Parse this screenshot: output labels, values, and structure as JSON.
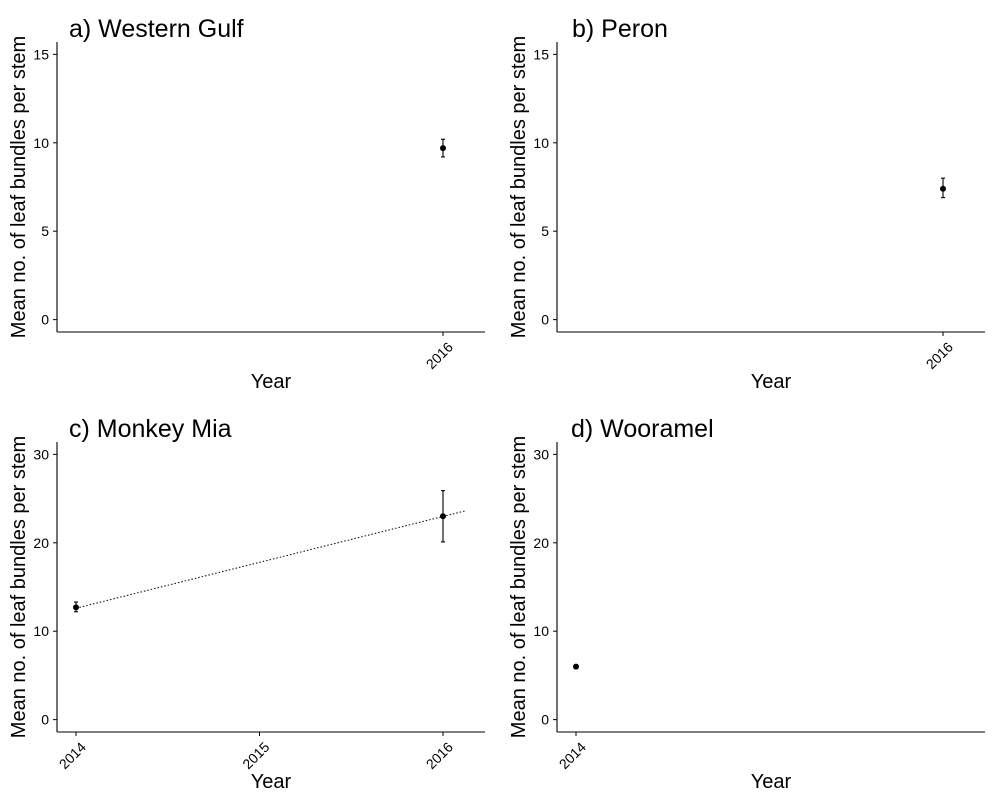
{
  "chart_data": [
    {
      "type": "scatter",
      "title": "a) Western Gulf",
      "xlabel": "Year",
      "ylabel": "Mean no. of leaf bundles per stem",
      "yticks": [
        0,
        5,
        10,
        15
      ],
      "ylim": [
        -0.7,
        15.7
      ],
      "xticks": [
        "2016"
      ],
      "points": [
        {
          "x": "2016",
          "y": 9.7,
          "ymin": 9.2,
          "ymax": 10.2
        }
      ],
      "trend": null
    },
    {
      "type": "scatter",
      "title": "b) Peron",
      "xlabel": "Year",
      "ylabel": "Mean no. of leaf bundles per stem",
      "yticks": [
        0,
        5,
        10,
        15
      ],
      "ylim": [
        -0.7,
        15.7
      ],
      "xticks": [
        "2016"
      ],
      "points": [
        {
          "x": "2016",
          "y": 7.4,
          "ymin": 6.9,
          "ymax": 8.0
        }
      ],
      "trend": null
    },
    {
      "type": "scatter",
      "title": "c) Monkey Mia",
      "xlabel": "Year",
      "ylabel": "Mean no. of leaf bundles per stem",
      "yticks": [
        0,
        10,
        20,
        30
      ],
      "ylim": [
        -1.4,
        31.4
      ],
      "xticks": [
        "2014",
        "2015",
        "2016"
      ],
      "points": [
        {
          "x": "2014",
          "y": 12.7,
          "ymin": 12.2,
          "ymax": 13.3
        },
        {
          "x": "2016",
          "y": 23.0,
          "ymin": 20.1,
          "ymax": 25.9
        }
      ],
      "trend": {
        "x_from": 2014,
        "y_from": 12.6,
        "x_to": 2016.12,
        "y_to": 23.6
      }
    },
    {
      "type": "scatter",
      "title": "d) Wooramel",
      "xlabel": "Year",
      "ylabel": "Mean no. of leaf bundles per stem",
      "yticks": [
        0,
        10,
        20,
        30
      ],
      "ylim": [
        -1.4,
        31.4
      ],
      "xticks": [
        "2014"
      ],
      "points": [
        {
          "x": "2014",
          "y": 6.0,
          "ymin": 5.8,
          "ymax": 6.2
        }
      ],
      "trend": null
    }
  ]
}
